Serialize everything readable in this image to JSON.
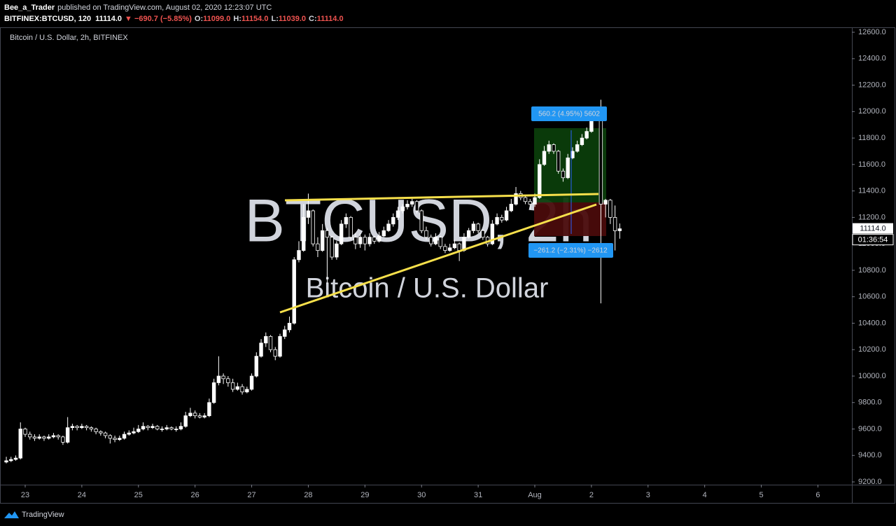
{
  "header": {
    "publisher": "Bee_a_Trader",
    "published": "published on TradingView.com, August 02, 2020 12:23:07 UTC",
    "symbol": "BITFINEX:BTCUSD, 120",
    "last": "11114.0",
    "change": "▼ −690.7 (−5.85%)",
    "ohlc": [
      {
        "label": "O:",
        "value": "11099.0"
      },
      {
        "label": "H:",
        "value": "11154.0"
      },
      {
        "label": "L:",
        "value": "11039.0"
      },
      {
        "label": "C:",
        "value": "11114.0"
      }
    ]
  },
  "chart_data": {
    "type": "candlestick",
    "title": "Bitcoin / U.S. Dollar, 2h, BITFINEX",
    "watermark": "BTCUSD, 2h",
    "watermark_subtitle": "Bitcoin / U.S. Dollar",
    "up_color": "#ffffff",
    "down_color": "#000000",
    "edge_color": "#ffffff",
    "countdown": "01:36:54",
    "annotations": [
      "560.2 (4.95%) 5602",
      "−261.2 (−2.31%) −2612"
    ],
    "xlim": [
      -1.34,
      179.2
    ],
    "xticks": [
      {
        "value": 4,
        "label": "23"
      },
      {
        "value": 16,
        "label": "24"
      },
      {
        "value": 28,
        "label": "25"
      },
      {
        "value": 40,
        "label": "26"
      },
      {
        "value": 52,
        "label": "27"
      },
      {
        "value": 64,
        "label": "28"
      },
      {
        "value": 76,
        "label": "29"
      },
      {
        "value": 88,
        "label": "30"
      },
      {
        "value": 100,
        "label": "31"
      },
      {
        "value": 112,
        "label": "Aug"
      },
      {
        "value": 124,
        "label": "2"
      },
      {
        "value": 136,
        "label": "3"
      },
      {
        "value": 148,
        "label": "4"
      },
      {
        "value": 160,
        "label": "5"
      },
      {
        "value": 172,
        "label": "6"
      }
    ],
    "ylim": [
      9179,
      12632
    ],
    "yticks": [
      {
        "value": 9200,
        "label": "9200.0"
      },
      {
        "value": 9400,
        "label": "9400.0"
      },
      {
        "value": 9600,
        "label": "9600.0"
      },
      {
        "value": 9800,
        "label": "9800.0"
      },
      {
        "value": 10000,
        "label": "10000.0"
      },
      {
        "value": 10200,
        "label": "10200.0"
      },
      {
        "value": 10400,
        "label": "10400.0"
      },
      {
        "value": 10600,
        "label": "10600.0"
      },
      {
        "value": 10800,
        "label": "10800.0"
      },
      {
        "value": 11000,
        "label": "11000.0"
      },
      {
        "value": 11200,
        "label": "11200.0"
      },
      {
        "value": 11400,
        "label": "11400.0"
      },
      {
        "value": 11600,
        "label": "11600.0"
      },
      {
        "value": 11800,
        "label": "11800.0"
      },
      {
        "value": 12000,
        "label": "12000.0"
      },
      {
        "value": 12200,
        "label": "12200.0"
      },
      {
        "value": 12400,
        "label": "12400.0"
      },
      {
        "value": 12600,
        "label": "12600.0"
      }
    ],
    "grid": false,
    "candles": [
      [
        9350,
        9390,
        9340,
        9360
      ],
      [
        9360,
        9390,
        9350,
        9370
      ],
      [
        9370,
        9400,
        9360,
        9380
      ],
      [
        9380,
        9650,
        9370,
        9600
      ],
      [
        9600,
        9610,
        9540,
        9560
      ],
      [
        9560,
        9580,
        9520,
        9540
      ],
      [
        9540,
        9560,
        9510,
        9530
      ],
      [
        9530,
        9560,
        9520,
        9540
      ],
      [
        9540,
        9550,
        9510,
        9530
      ],
      [
        9530,
        9560,
        9520,
        9540
      ],
      [
        9540,
        9570,
        9530,
        9550
      ],
      [
        9550,
        9560,
        9520,
        9540
      ],
      [
        9540,
        9550,
        9480,
        9500
      ],
      [
        9500,
        9690,
        9490,
        9610
      ],
      [
        9610,
        9640,
        9590,
        9620
      ],
      [
        9620,
        9630,
        9590,
        9610
      ],
      [
        9610,
        9640,
        9600,
        9620
      ],
      [
        9620,
        9630,
        9590,
        9610
      ],
      [
        9610,
        9620,
        9580,
        9600
      ],
      [
        9600,
        9610,
        9560,
        9580
      ],
      [
        9580,
        9590,
        9550,
        9570
      ],
      [
        9570,
        9580,
        9530,
        9550
      ],
      [
        9550,
        9560,
        9490,
        9530
      ],
      [
        9530,
        9550,
        9500,
        9520
      ],
      [
        9520,
        9550,
        9510,
        9530
      ],
      [
        9530,
        9580,
        9520,
        9560
      ],
      [
        9560,
        9590,
        9550,
        9570
      ],
      [
        9570,
        9610,
        9560,
        9580
      ],
      [
        9580,
        9630,
        9570,
        9600
      ],
      [
        9600,
        9650,
        9590,
        9620
      ],
      [
        9620,
        9630,
        9590,
        9610
      ],
      [
        9610,
        9640,
        9600,
        9620
      ],
      [
        9620,
        9630,
        9590,
        9600
      ],
      [
        9600,
        9620,
        9580,
        9600
      ],
      [
        9600,
        9630,
        9590,
        9610
      ],
      [
        9610,
        9620,
        9590,
        9600
      ],
      [
        9600,
        9620,
        9580,
        9600
      ],
      [
        9600,
        9650,
        9590,
        9620
      ],
      [
        9620,
        9730,
        9610,
        9700
      ],
      [
        9700,
        9760,
        9690,
        9720
      ],
      [
        9720,
        9740,
        9680,
        9700
      ],
      [
        9700,
        9720,
        9680,
        9690
      ],
      [
        9690,
        9720,
        9680,
        9700
      ],
      [
        9700,
        9830,
        9690,
        9800
      ],
      [
        9800,
        9980,
        9790,
        9950
      ],
      [
        9950,
        10150,
        9930,
        10000
      ],
      [
        10000,
        10020,
        9940,
        9980
      ],
      [
        9980,
        10000,
        9920,
        9950
      ],
      [
        9950,
        9980,
        9880,
        9900
      ],
      [
        9900,
        9950,
        9890,
        9920
      ],
      [
        9920,
        9940,
        9860,
        9880
      ],
      [
        9880,
        9920,
        9870,
        9900
      ],
      [
        9900,
        10020,
        9890,
        10000
      ],
      [
        10000,
        10180,
        9990,
        10150
      ],
      [
        10150,
        10280,
        10140,
        10250
      ],
      [
        10250,
        10330,
        10220,
        10300
      ],
      [
        10300,
        10310,
        10180,
        10200
      ],
      [
        10200,
        10220,
        10120,
        10150
      ],
      [
        10150,
        10320,
        10140,
        10300
      ],
      [
        10300,
        10380,
        10280,
        10350
      ],
      [
        10350,
        10450,
        10330,
        10400
      ],
      [
        10400,
        10900,
        10390,
        10880
      ],
      [
        10880,
        11020,
        10860,
        10950
      ],
      [
        10950,
        11300,
        10940,
        11200
      ],
      [
        11200,
        11380,
        11150,
        11250
      ],
      [
        11250,
        11260,
        10980,
        11000
      ],
      [
        11000,
        11050,
        10900,
        10950
      ],
      [
        10950,
        11150,
        10940,
        11100
      ],
      [
        11100,
        11120,
        10700,
        11050
      ],
      [
        11050,
        11060,
        10880,
        10900
      ],
      [
        10900,
        11020,
        10880,
        11000
      ],
      [
        11000,
        11180,
        10990,
        11150
      ],
      [
        11150,
        11230,
        11120,
        11200
      ],
      [
        11200,
        11210,
        11030,
        11050
      ],
      [
        11050,
        11080,
        10960,
        11000
      ],
      [
        11000,
        11080,
        10970,
        11050
      ],
      [
        11050,
        11070,
        10950,
        11000
      ],
      [
        11000,
        11080,
        10980,
        11050
      ],
      [
        11050,
        11060,
        11000,
        11020
      ],
      [
        11020,
        11090,
        11010,
        11060
      ],
      [
        11060,
        11130,
        11050,
        11100
      ],
      [
        11100,
        11180,
        11090,
        11150
      ],
      [
        11150,
        11230,
        11130,
        11200
      ],
      [
        11200,
        11280,
        11180,
        11250
      ],
      [
        11250,
        11300,
        11230,
        11280
      ],
      [
        11280,
        11330,
        11260,
        11300
      ],
      [
        11300,
        11340,
        11280,
        11320
      ],
      [
        11320,
        11330,
        11230,
        11250
      ],
      [
        11250,
        11260,
        11080,
        11100
      ],
      [
        11100,
        11130,
        11030,
        11050
      ],
      [
        11050,
        11070,
        10980,
        11000
      ],
      [
        11000,
        11080,
        10990,
        11050
      ],
      [
        11050,
        11060,
        10960,
        10980
      ],
      [
        10980,
        11000,
        10930,
        10950
      ],
      [
        10950,
        11000,
        10940,
        10970
      ],
      [
        10970,
        11030,
        10960,
        11000
      ],
      [
        11000,
        11010,
        10870,
        10950
      ],
      [
        10950,
        11080,
        10940,
        11050
      ],
      [
        11050,
        11120,
        11040,
        11100
      ],
      [
        11100,
        11170,
        11080,
        11150
      ],
      [
        11150,
        11160,
        11080,
        11100
      ],
      [
        11100,
        11110,
        11030,
        11050
      ],
      [
        11050,
        11060,
        10980,
        11000
      ],
      [
        11000,
        11180,
        10990,
        11150
      ],
      [
        11150,
        11230,
        11140,
        11200
      ],
      [
        11200,
        11220,
        11160,
        11180
      ],
      [
        11180,
        11280,
        11170,
        11250
      ],
      [
        11250,
        11340,
        11240,
        11300
      ],
      [
        11300,
        11430,
        11290,
        11380
      ],
      [
        11380,
        11400,
        11330,
        11350
      ],
      [
        11350,
        11370,
        11300,
        11320
      ],
      [
        11320,
        11340,
        11260,
        11300
      ],
      [
        11300,
        11380,
        11280,
        11350
      ],
      [
        11350,
        11640,
        11340,
        11600
      ],
      [
        11600,
        11740,
        11590,
        11700
      ],
      [
        11700,
        11780,
        11680,
        11750
      ],
      [
        11750,
        11760,
        11680,
        11700
      ],
      [
        11700,
        11710,
        11530,
        11550
      ],
      [
        11550,
        11570,
        11470,
        11500
      ],
      [
        11500,
        11680,
        11490,
        11650
      ],
      [
        11650,
        11730,
        11640,
        11700
      ],
      [
        11700,
        11780,
        11690,
        11750
      ],
      [
        11750,
        11830,
        11740,
        11800
      ],
      [
        11800,
        11880,
        11790,
        11850
      ],
      [
        11850,
        11980,
        11840,
        11950
      ],
      [
        11950,
        12000,
        11930,
        11980
      ],
      [
        11980,
        12090,
        10550,
        11300
      ],
      [
        11300,
        11340,
        11200,
        11330
      ],
      [
        11330,
        11340,
        11150,
        11200
      ],
      [
        11200,
        11290,
        10950,
        11099
      ],
      [
        11099,
        11154,
        11039,
        11114
      ]
    ]
  },
  "footer": {
    "brand": "TradingView"
  }
}
